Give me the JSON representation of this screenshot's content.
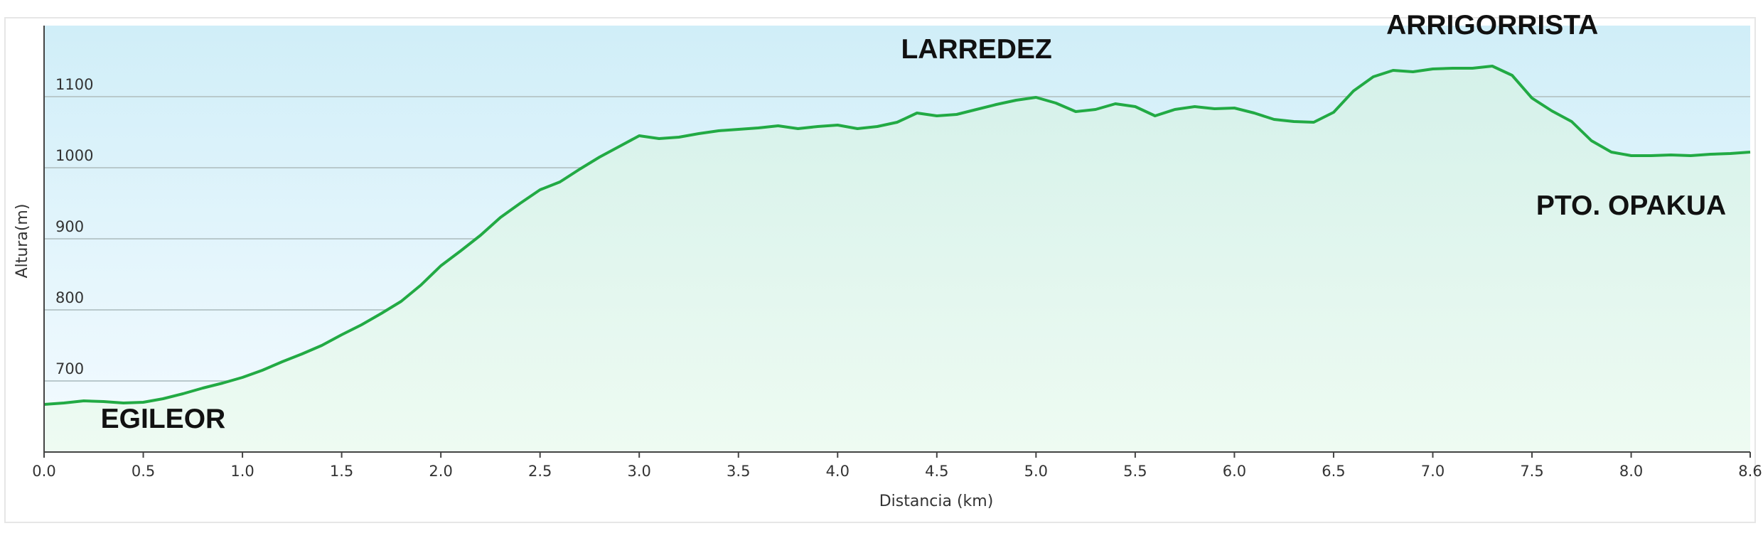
{
  "chart_data": {
    "type": "area",
    "xlabel": "Distancia  (km)",
    "ylabel": "Altura(m)",
    "xlim": [
      0,
      8.6
    ],
    "ylim": [
      600,
      1200
    ],
    "x_ticks": [
      "0.0",
      "0.5",
      "1.0",
      "1.5",
      "2.0",
      "2.5",
      "3.0",
      "3.5",
      "4.0",
      "4.5",
      "5.0",
      "5.5",
      "6.0",
      "6.5",
      "7.0",
      "7.5",
      "8.0",
      "8.6"
    ],
    "x_tick_values": [
      0,
      0.5,
      1,
      1.5,
      2,
      2.5,
      3,
      3.5,
      4,
      4.5,
      5,
      5.5,
      6,
      6.5,
      7,
      7.5,
      8,
      8.6
    ],
    "y_ticks": [
      "700",
      "800",
      "900",
      "1000",
      "1100"
    ],
    "y_tick_values": [
      700,
      800,
      900,
      1000,
      1100
    ],
    "grid": true,
    "colors": {
      "line": "#22aa44",
      "sky_top": "#d0eef8",
      "sky_bottom": "#f4fbff",
      "fill_top": "#d5f1ea",
      "fill_bottom": "#eefbf2",
      "grid": "#b9c9cc"
    },
    "x": [
      0.0,
      0.1,
      0.2,
      0.3,
      0.4,
      0.5,
      0.6,
      0.7,
      0.8,
      0.9,
      1.0,
      1.1,
      1.2,
      1.3,
      1.4,
      1.5,
      1.6,
      1.7,
      1.8,
      1.9,
      2.0,
      2.1,
      2.2,
      2.3,
      2.4,
      2.5,
      2.6,
      2.7,
      2.8,
      2.9,
      3.0,
      3.1,
      3.2,
      3.3,
      3.4,
      3.5,
      3.6,
      3.7,
      3.8,
      3.9,
      4.0,
      4.1,
      4.2,
      4.3,
      4.4,
      4.5,
      4.6,
      4.7,
      4.8,
      4.9,
      5.0,
      5.1,
      5.2,
      5.3,
      5.4,
      5.5,
      5.6,
      5.7,
      5.8,
      5.9,
      6.0,
      6.1,
      6.2,
      6.3,
      6.4,
      6.5,
      6.6,
      6.7,
      6.8,
      6.9,
      7.0,
      7.1,
      7.2,
      7.3,
      7.4,
      7.5,
      7.6,
      7.7,
      7.8,
      7.9,
      8.0,
      8.1,
      8.2,
      8.3,
      8.4,
      8.5,
      8.6
    ],
    "series": [
      {
        "values": [
          667,
          669,
          672,
          671,
          669,
          670,
          675,
          682,
          690,
          697,
          705,
          715,
          727,
          738,
          750,
          765,
          779,
          795,
          812,
          835,
          862,
          883,
          905,
          930,
          950,
          969,
          980,
          998,
          1015,
          1030,
          1045,
          1041,
          1043,
          1048,
          1052,
          1054,
          1056,
          1059,
          1055,
          1058,
          1060,
          1055,
          1058,
          1064,
          1077,
          1073,
          1075,
          1082,
          1089,
          1095,
          1099,
          1091,
          1079,
          1082,
          1090,
          1086,
          1073,
          1082,
          1086,
          1083,
          1084,
          1077,
          1068,
          1065,
          1064,
          1078,
          1108,
          1128,
          1137,
          1135,
          1139,
          1140,
          1140,
          1143,
          1130,
          1098,
          1080,
          1065,
          1038,
          1022,
          1017,
          1017,
          1018,
          1017,
          1019,
          1020,
          1022
        ]
      }
    ],
    "annotations": [
      {
        "text": "EGILEOR",
        "x": 0.6,
        "y": 634
      },
      {
        "text": "LARREDEZ",
        "x": 4.7,
        "y": 1154
      },
      {
        "text": "ARRIGORRISTA",
        "x": 7.3,
        "y": 1188
      },
      {
        "text": "PTO. OPAKUA",
        "x": 8.0,
        "y": 934
      }
    ]
  }
}
